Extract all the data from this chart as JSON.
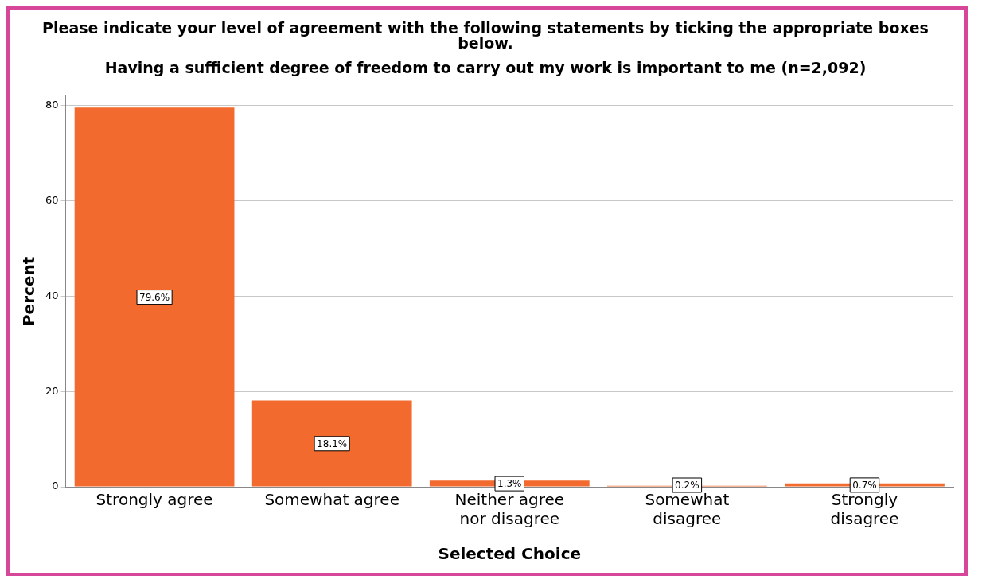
{
  "chart_data": {
    "type": "bar",
    "title": "Please indicate your level of agreement with the following statements by ticking the appropriate boxes below.",
    "subtitle": "Having a sufficient degree of freedom to carry out my work is important to me (n=2,092)",
    "xlabel": "Selected Choice",
    "ylabel": "Percent",
    "categories": [
      "Strongly agree",
      "Somewhat agree",
      "Neither agree nor disagree",
      "Somewhat disagree",
      "Strongly disagree"
    ],
    "values": [
      79.6,
      18.1,
      1.3,
      0.2,
      0.7
    ],
    "value_labels": [
      "79.6%",
      "18.1%",
      "1.3%",
      "0.2%",
      "0.7%"
    ],
    "color": "#f26a2e",
    "ylim": [
      0,
      82
    ],
    "yticks": [
      0,
      20,
      40,
      60,
      80
    ],
    "grid": "y"
  }
}
